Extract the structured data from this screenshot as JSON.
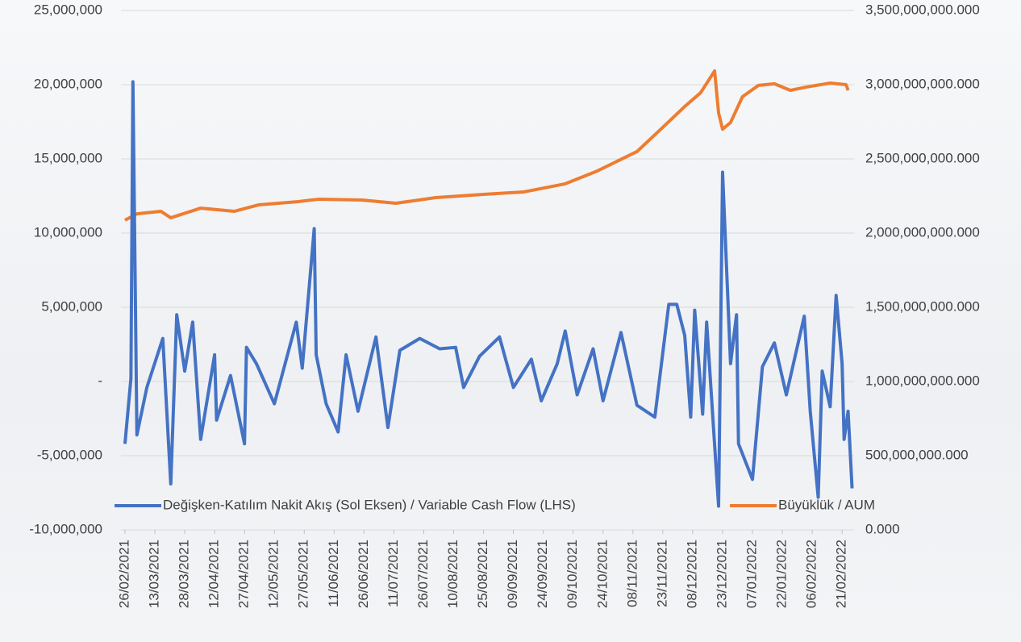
{
  "chart_data": {
    "type": "line",
    "legend": "bottom",
    "grid": true,
    "xlim": [
      "2021-02-24",
      "2022-02-27"
    ],
    "xticks": [
      {
        "value": "2021-02-26",
        "label": "26/02/2021"
      },
      {
        "value": "2021-03-13",
        "label": "13/03/2021"
      },
      {
        "value": "2021-03-28",
        "label": "28/03/2021"
      },
      {
        "value": "2021-04-12",
        "label": "12/04/2021"
      },
      {
        "value": "2021-04-27",
        "label": "27/04/2021"
      },
      {
        "value": "2021-05-12",
        "label": "12/05/2021"
      },
      {
        "value": "2021-05-27",
        "label": "27/05/2021"
      },
      {
        "value": "2021-06-11",
        "label": "11/06/2021"
      },
      {
        "value": "2021-06-26",
        "label": "26/06/2021"
      },
      {
        "value": "2021-07-11",
        "label": "11/07/2021"
      },
      {
        "value": "2021-07-26",
        "label": "26/07/2021"
      },
      {
        "value": "2021-08-10",
        "label": "10/08/2021"
      },
      {
        "value": "2021-08-25",
        "label": "25/08/2021"
      },
      {
        "value": "2021-09-09",
        "label": "09/09/2021"
      },
      {
        "value": "2021-09-24",
        "label": "24/09/2021"
      },
      {
        "value": "2021-10-09",
        "label": "09/10/2021"
      },
      {
        "value": "2021-10-24",
        "label": "24/10/2021"
      },
      {
        "value": "2021-11-08",
        "label": "08/11/2021"
      },
      {
        "value": "2021-11-23",
        "label": "23/11/2021"
      },
      {
        "value": "2021-12-08",
        "label": "08/12/2021"
      },
      {
        "value": "2021-12-23",
        "label": "23/12/2021"
      },
      {
        "value": "2022-01-07",
        "label": "07/01/2022"
      },
      {
        "value": "2022-01-22",
        "label": "22/01/2022"
      },
      {
        "value": "2022-02-06",
        "label": "06/02/2022"
      },
      {
        "value": "2022-02-21",
        "label": "21/02/2022"
      }
    ],
    "ylim": [
      -10000000,
      25000000
    ],
    "yticks": [
      {
        "value": -10000000,
        "label": "-10,000,000"
      },
      {
        "value": -5000000,
        "label": "-5,000,000"
      },
      {
        "value": 0,
        "label": "-"
      },
      {
        "value": 5000000,
        "label": "5,000,000"
      },
      {
        "value": 10000000,
        "label": "10,000,000"
      },
      {
        "value": 15000000,
        "label": "15,000,000"
      },
      {
        "value": 20000000,
        "label": "20,000,000"
      },
      {
        "value": 25000000,
        "label": "25,000,000"
      }
    ],
    "y2lim": [
      0,
      3500000000
    ],
    "y2ticks": [
      {
        "value": 0,
        "label": "0.000"
      },
      {
        "value": 500000000,
        "label": "500,000,000.000"
      },
      {
        "value": 1000000000,
        "label": "1,000,000,000.000"
      },
      {
        "value": 1500000000,
        "label": "1,500,000,000.000"
      },
      {
        "value": 2000000000,
        "label": "2,000,000,000.000"
      },
      {
        "value": 2500000000,
        "label": "2,500,000,000.000"
      },
      {
        "value": 3000000000,
        "label": "3,000,000,000.000"
      },
      {
        "value": 3500000000,
        "label": "3,500,000,000.000"
      }
    ],
    "series": [
      {
        "name": "Değişken-Katılım Nakit Akış (Sol Eksen) / Variable Cash Flow (LHS)",
        "color": "#4472c4",
        "x": [
          "2021-02-26",
          "2021-03-01",
          "2021-03-02",
          "2021-03-04",
          "2021-03-09",
          "2021-03-17",
          "2021-03-21",
          "2021-03-24",
          "2021-03-28",
          "2021-04-01",
          "2021-04-05",
          "2021-04-12",
          "2021-04-13",
          "2021-04-20",
          "2021-04-27",
          "2021-04-28",
          "2021-05-03",
          "2021-05-12",
          "2021-05-23",
          "2021-05-26",
          "2021-06-01",
          "2021-06-02",
          "2021-06-07",
          "2021-06-13",
          "2021-06-17",
          "2021-06-23",
          "2021-07-02",
          "2021-07-08",
          "2021-07-14",
          "2021-07-24",
          "2021-08-03",
          "2021-08-11",
          "2021-08-15",
          "2021-08-23",
          "2021-09-02",
          "2021-09-09",
          "2021-09-18",
          "2021-09-23",
          "2021-10-01",
          "2021-10-05",
          "2021-10-11",
          "2021-10-19",
          "2021-10-24",
          "2021-11-02",
          "2021-11-10",
          "2021-11-19",
          "2021-11-26",
          "2021-11-30",
          "2021-12-04",
          "2021-12-07",
          "2021-12-09",
          "2021-12-13",
          "2021-12-15",
          "2021-12-21",
          "2021-12-23",
          "2021-12-27",
          "2021-12-30",
          "2021-12-31",
          "2022-01-07",
          "2022-01-12",
          "2022-01-18",
          "2022-01-24",
          "2022-02-02",
          "2022-02-05",
          "2022-02-09",
          "2022-02-11",
          "2022-02-15",
          "2022-02-18",
          "2022-02-21",
          "2022-02-22",
          "2022-02-24",
          "2022-02-26"
        ],
        "values": [
          -4200000,
          200000,
          20200000,
          -3600000,
          -400000,
          2900000,
          -6900000,
          4500000,
          700000,
          4000000,
          -3900000,
          1800000,
          -2600000,
          400000,
          -4200000,
          2300000,
          1200000,
          -1500000,
          4000000,
          900000,
          10300000,
          1800000,
          -1500000,
          -3400000,
          1800000,
          -2000000,
          3000000,
          -3100000,
          2100000,
          2900000,
          2200000,
          2300000,
          -400000,
          1700000,
          3000000,
          -400000,
          1500000,
          -1300000,
          1200000,
          3400000,
          -900000,
          2200000,
          -1300000,
          3300000,
          -1600000,
          -2400000,
          5200000,
          5200000,
          3100000,
          -2400000,
          4800000,
          -2200000,
          4000000,
          -8400000,
          14100000,
          1200000,
          4500000,
          -4200000,
          -6600000,
          1000000,
          2600000,
          -900000,
          4400000,
          -2000000,
          -7800000,
          700000,
          -1700000,
          5800000,
          1200000,
          -3900000,
          -2000000,
          -7200000
        ]
      },
      {
        "name": "Büyüklük / AUM",
        "color": "#ed7d31",
        "axis": "y2",
        "x": [
          "2021-02-26",
          "2021-03-04",
          "2021-03-16",
          "2021-03-21",
          "2021-04-05",
          "2021-04-22",
          "2021-05-04",
          "2021-05-24",
          "2021-06-03",
          "2021-06-25",
          "2021-07-12",
          "2021-08-01",
          "2021-08-25",
          "2021-09-14",
          "2021-10-05",
          "2021-10-21",
          "2021-11-10",
          "2021-11-22",
          "2021-12-04",
          "2021-12-12",
          "2021-12-19",
          "2021-12-21",
          "2021-12-23",
          "2021-12-27",
          "2022-01-02",
          "2022-01-10",
          "2022-01-18",
          "2022-01-26",
          "2022-02-03",
          "2022-02-15",
          "2022-02-23",
          "2022-02-24"
        ],
        "values": [
          2087000000,
          2130000000,
          2147000000,
          2103000000,
          2168000000,
          2147000000,
          2190000000,
          2212000000,
          2228000000,
          2223000000,
          2201000000,
          2239000000,
          2261000000,
          2277000000,
          2332000000,
          2418000000,
          2549000000,
          2700000000,
          2853000000,
          2946000000,
          3093000000,
          2810000000,
          2700000000,
          2745000000,
          2919000000,
          2995000000,
          3006000000,
          2962000000,
          2984000000,
          3011000000,
          3000000000,
          2962000000
        ]
      }
    ]
  }
}
